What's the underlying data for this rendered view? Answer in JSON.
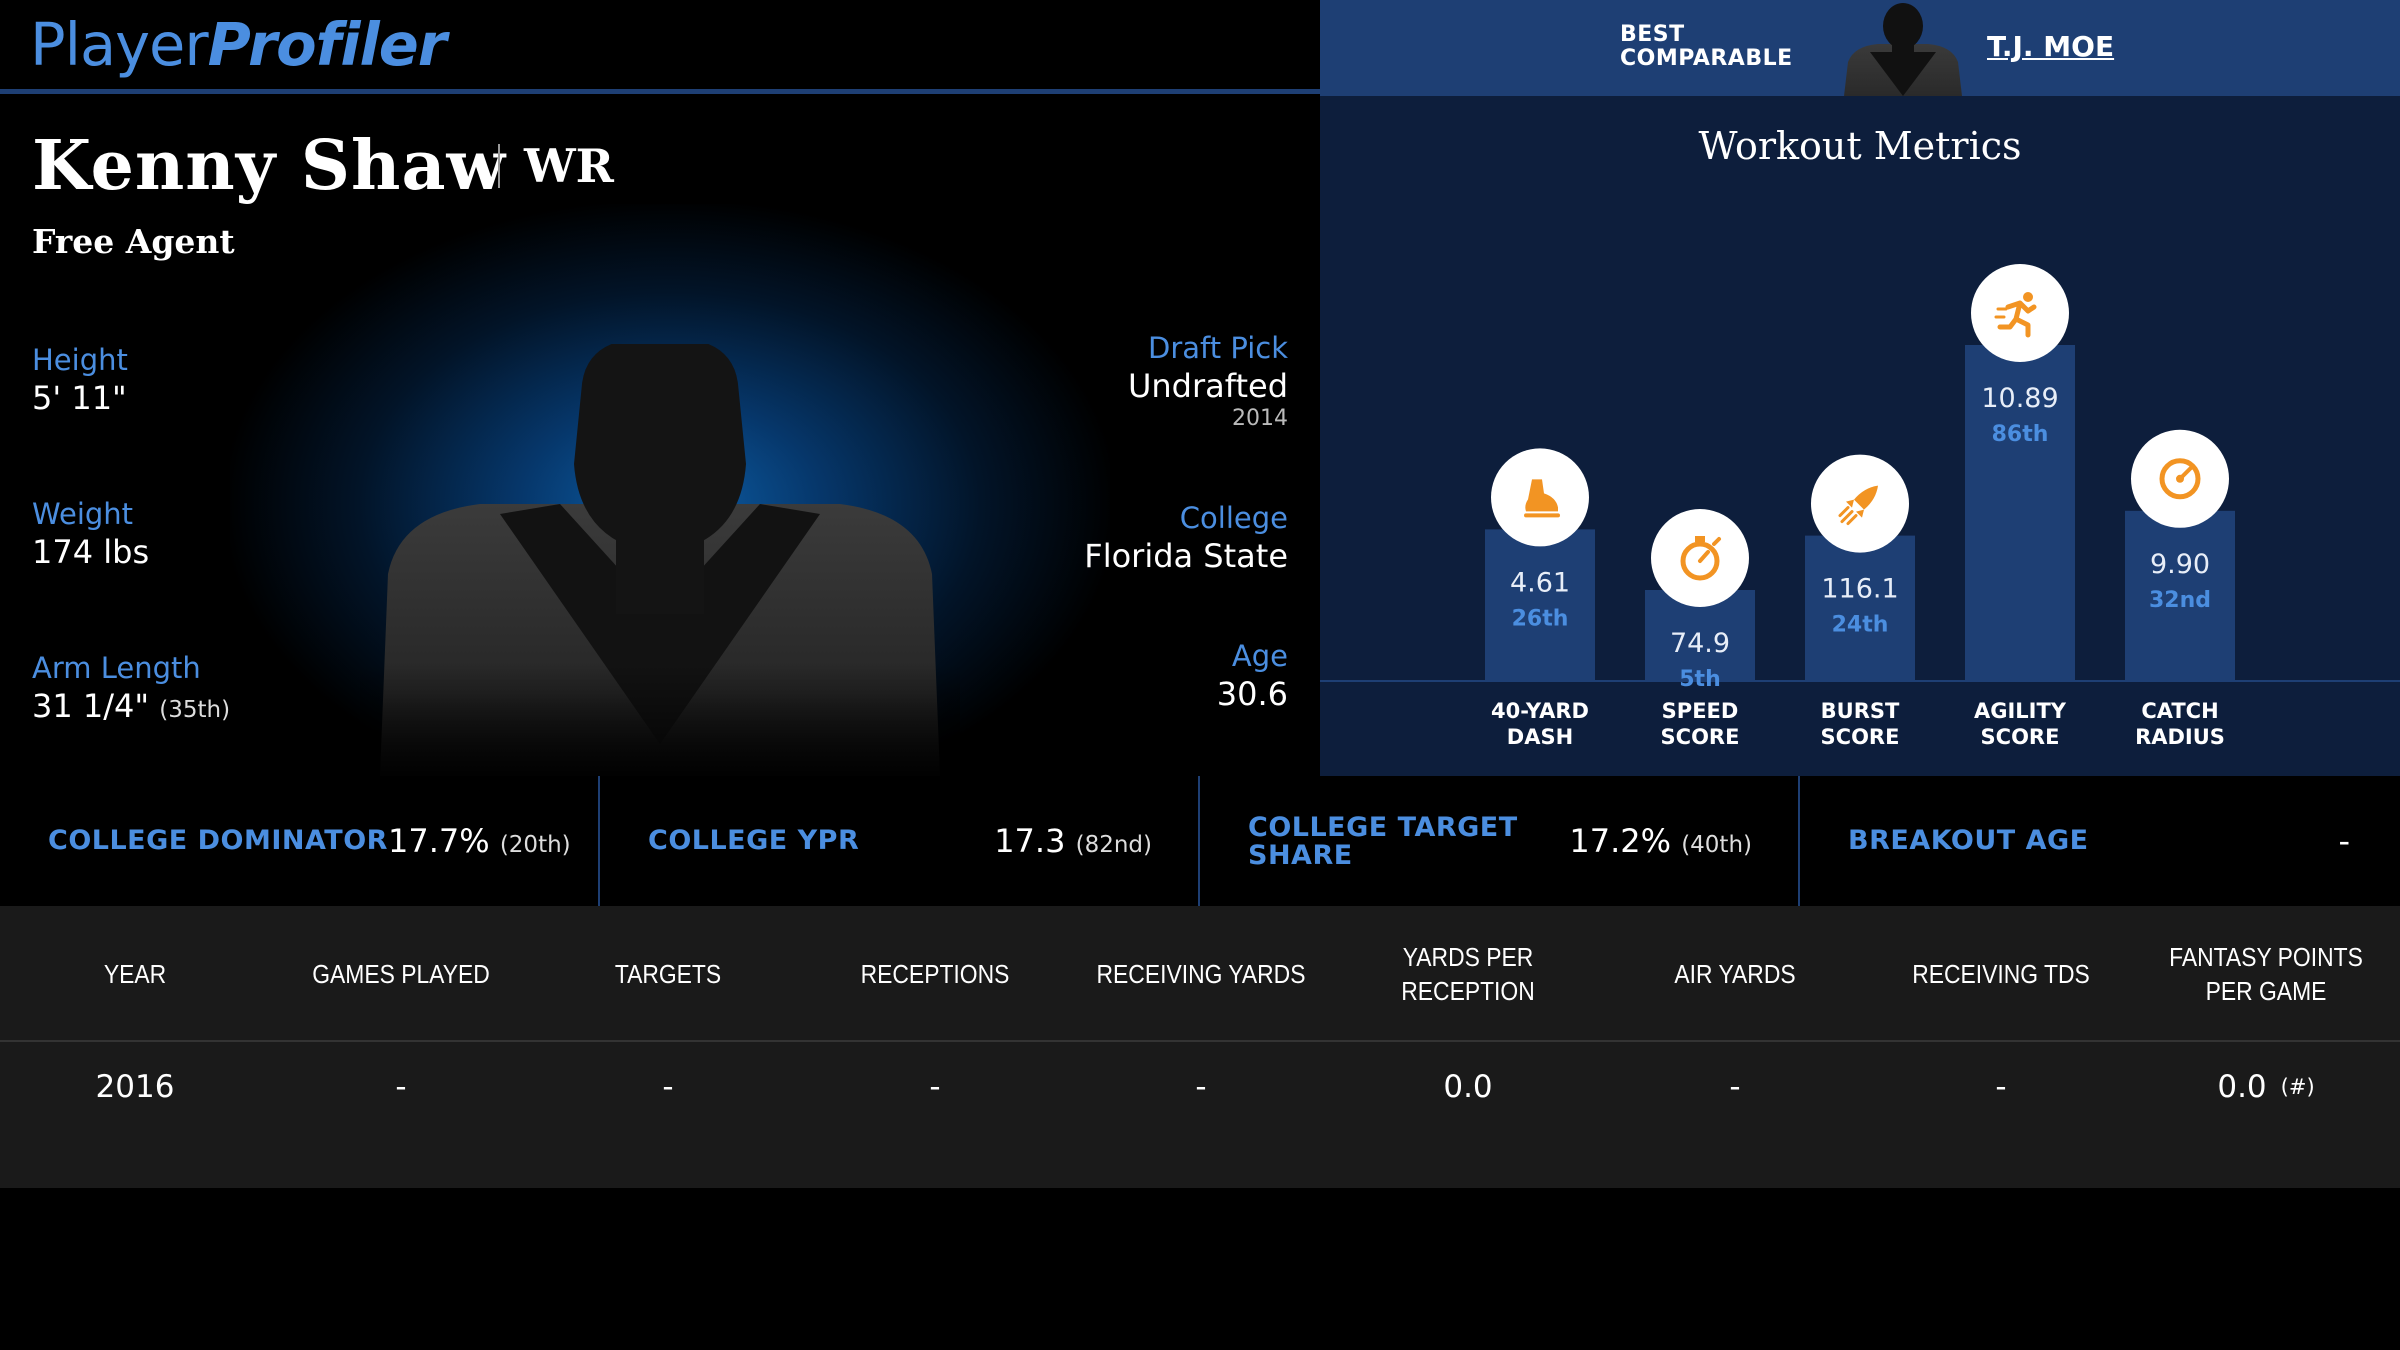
{
  "brand": {
    "logo_part1": "Player",
    "logo_part2": "Profiler"
  },
  "comparable": {
    "label": "BEST\nCOMPARABLE",
    "name": "T.J. MOE"
  },
  "player": {
    "name": "Kenny Shaw",
    "position": "WR",
    "team": "Free Agent",
    "height": {
      "label": "Height",
      "value": "5' 11\""
    },
    "weight": {
      "label": "Weight",
      "value": "174 lbs"
    },
    "arm_length": {
      "label": "Arm Length",
      "value": "31 1/4\"",
      "percentile": "(35th)"
    },
    "draft_pick": {
      "label": "Draft Pick",
      "value": "Undrafted",
      "year": "2014"
    },
    "college": {
      "label": "College",
      "value": "Florida State"
    },
    "age": {
      "label": "Age",
      "value": "30.6"
    }
  },
  "workout": {
    "title": "Workout Metrics",
    "metrics": [
      {
        "id": "dash",
        "label_line1": "40-YARD",
        "label_line2": "DASH",
        "value": "4.61",
        "percentile": "26th",
        "percentile_num": 26,
        "icon": "running-shoe-icon"
      },
      {
        "id": "speed",
        "label_line1": "SPEED",
        "label_line2": "SCORE",
        "value": "74.9",
        "percentile": "5th",
        "percentile_num": 5,
        "icon": "stopwatch-icon"
      },
      {
        "id": "burst",
        "label_line1": "BURST",
        "label_line2": "SCORE",
        "value": "116.1",
        "percentile": "24th",
        "percentile_num": 24,
        "icon": "rocket-icon"
      },
      {
        "id": "agility",
        "label_line1": "AGILITY",
        "label_line2": "SCORE",
        "value": "10.89",
        "percentile": "86th",
        "percentile_num": 86,
        "icon": "running-man-icon"
      },
      {
        "id": "catch",
        "label_line1": "CATCH",
        "label_line2": "RADIUS",
        "value": "9.90",
        "percentile": "32nd",
        "percentile_num": 32,
        "icon": "target-icon"
      }
    ]
  },
  "college_stats": [
    {
      "label": "COLLEGE DOMINATOR",
      "value": "17.7%",
      "percentile": "(20th)"
    },
    {
      "label": "COLLEGE YPR",
      "value": "17.3",
      "percentile": "(82nd)"
    },
    {
      "label": "COLLEGE TARGET SHARE",
      "value": "17.2%",
      "percentile": "(40th)"
    },
    {
      "label": "BREAKOUT AGE",
      "value": "-",
      "percentile": ""
    }
  ],
  "season_table": {
    "headers": [
      "YEAR",
      "GAMES PLAYED",
      "TARGETS",
      "RECEPTIONS",
      "RECEIVING YARDS",
      "YARDS PER RECEPTION",
      "AIR YARDS",
      "RECEIVING TDS",
      "FANTASY POINTS PER GAME"
    ],
    "rows": [
      {
        "year": "2016",
        "games_played": "-",
        "targets": "-",
        "receptions": "-",
        "receiving_yards": "-",
        "yards_per_reception": "0.0",
        "air_yards": "-",
        "receiving_tds": "-",
        "fantasy_points_per_game": "0.0",
        "fantasy_rank": "(#)"
      }
    ]
  },
  "colors": {
    "accent": "#4b8ee0",
    "navy": "#1e3f74",
    "panel": "#0d1e3c",
    "icon_orange": "#f29423"
  }
}
